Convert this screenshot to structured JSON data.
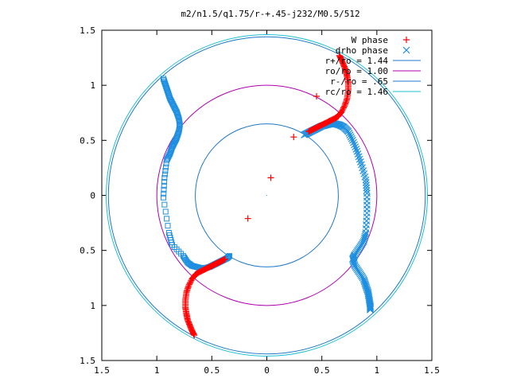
{
  "chart_data": {
    "type": "scatter",
    "title": "m2/n1.5/q1.75/r-+.45-j232/M0.5/512",
    "xlabel": "",
    "ylabel": "",
    "xlim": [
      -1.5,
      1.5
    ],
    "ylim": [
      -1.5,
      1.5
    ],
    "xticks": [
      -1.5,
      -1,
      -0.5,
      0,
      0.5,
      1,
      1.5
    ],
    "yticks": [
      -1.5,
      -1,
      -0.5,
      0,
      0.5,
      1,
      1.5
    ],
    "xtick_labels": [
      "1.5",
      "1",
      "0.5",
      "0",
      "0.5",
      "1",
      "1.5"
    ],
    "ytick_labels": [
      "1.5",
      "1",
      "0.5",
      "0",
      "0.5",
      "1",
      "1.5"
    ],
    "grid": false,
    "legend_position": "top-right",
    "circles": [
      {
        "label": "r+/ro = 1.44",
        "radius": 1.44,
        "color": "#1f78c8"
      },
      {
        "label": "ro/ro = 1.00",
        "radius": 1.0,
        "color": "#b000b0"
      },
      {
        "label": "r-/ro = .65",
        "radius": 0.65,
        "color": "#1f78c8"
      },
      {
        "label": "rc/ro = 1.46",
        "radius": 1.46,
        "color": "#20c0d0"
      }
    ],
    "series": [
      {
        "name": "W phase",
        "marker": "plus",
        "color": "#ff0000",
        "points": [
          [
            0.38,
            0.58
          ],
          [
            0.42,
            0.6
          ],
          [
            0.46,
            0.62
          ],
          [
            0.5,
            0.64
          ],
          [
            0.54,
            0.66
          ],
          [
            0.58,
            0.68
          ],
          [
            0.62,
            0.7
          ],
          [
            0.65,
            0.72
          ],
          [
            0.68,
            0.76
          ],
          [
            0.71,
            0.82
          ],
          [
            0.73,
            0.88
          ],
          [
            0.74,
            0.95
          ],
          [
            0.74,
            1.02
          ],
          [
            0.73,
            1.08
          ],
          [
            0.72,
            1.13
          ],
          [
            0.7,
            1.18
          ],
          [
            0.68,
            1.23
          ],
          [
            0.66,
            1.27
          ],
          [
            -0.38,
            -0.58
          ],
          [
            -0.42,
            -0.6
          ],
          [
            -0.46,
            -0.62
          ],
          [
            -0.5,
            -0.64
          ],
          [
            -0.54,
            -0.66
          ],
          [
            -0.58,
            -0.68
          ],
          [
            -0.62,
            -0.7
          ],
          [
            -0.65,
            -0.72
          ],
          [
            -0.68,
            -0.76
          ],
          [
            -0.71,
            -0.82
          ],
          [
            -0.73,
            -0.88
          ],
          [
            -0.74,
            -0.95
          ],
          [
            -0.74,
            -1.02
          ],
          [
            -0.73,
            -1.08
          ],
          [
            -0.72,
            -1.13
          ],
          [
            -0.7,
            -1.18
          ],
          [
            -0.68,
            -1.23
          ],
          [
            -0.66,
            -1.27
          ]
        ]
      },
      {
        "name": "drho phase",
        "marker": "cross",
        "color": "#1f8fe0",
        "points": [
          [
            0.34,
            0.55
          ],
          [
            0.38,
            0.57
          ],
          [
            0.42,
            0.59
          ],
          [
            0.46,
            0.61
          ],
          [
            0.5,
            0.63
          ],
          [
            0.54,
            0.64
          ],
          [
            0.58,
            0.65
          ],
          [
            0.62,
            0.65
          ],
          [
            0.66,
            0.64
          ],
          [
            0.7,
            0.62
          ],
          [
            0.74,
            0.58
          ],
          [
            0.78,
            0.5
          ],
          [
            0.82,
            0.4
          ],
          [
            0.86,
            0.28
          ],
          [
            0.9,
            0.14
          ],
          [
            0.91,
            0.02
          ],
          [
            0.91,
            -0.16
          ],
          [
            0.9,
            -0.34
          ],
          [
            0.88,
            -0.42
          ],
          [
            0.84,
            -0.48
          ],
          [
            0.8,
            -0.54
          ],
          [
            0.78,
            -0.58
          ],
          [
            0.8,
            -0.64
          ],
          [
            0.84,
            -0.7
          ],
          [
            0.88,
            -0.76
          ],
          [
            0.9,
            -0.82
          ],
          [
            0.92,
            -0.88
          ],
          [
            0.93,
            -0.94
          ],
          [
            0.94,
            -1.0
          ],
          [
            0.94,
            -1.04
          ]
        ]
      },
      {
        "name": "",
        "marker": "square",
        "color": "#1f8fe0",
        "points": [
          [
            -0.94,
            1.06
          ],
          [
            -0.92,
            1.0
          ],
          [
            -0.9,
            0.94
          ],
          [
            -0.88,
            0.88
          ],
          [
            -0.85,
            0.82
          ],
          [
            -0.82,
            0.76
          ],
          [
            -0.8,
            0.7
          ],
          [
            -0.79,
            0.64
          ],
          [
            -0.8,
            0.58
          ],
          [
            -0.82,
            0.52
          ],
          [
            -0.84,
            0.48
          ],
          [
            -0.86,
            0.44
          ],
          [
            -0.88,
            0.38
          ],
          [
            -0.91,
            0.32
          ],
          [
            -0.93,
            0.16
          ],
          [
            -0.94,
            -0.02
          ],
          [
            -0.89,
            -0.34
          ],
          [
            -0.86,
            -0.45
          ],
          [
            -0.76,
            -0.55
          ],
          [
            -0.72,
            -0.61
          ],
          [
            -0.68,
            -0.64
          ],
          [
            -0.64,
            -0.65
          ],
          [
            -0.6,
            -0.66
          ],
          [
            -0.56,
            -0.66
          ],
          [
            -0.52,
            -0.65
          ],
          [
            -0.48,
            -0.63
          ],
          [
            -0.44,
            -0.61
          ],
          [
            -0.4,
            -0.59
          ],
          [
            -0.36,
            -0.57
          ],
          [
            -0.34,
            -0.55
          ]
        ]
      }
    ]
  }
}
